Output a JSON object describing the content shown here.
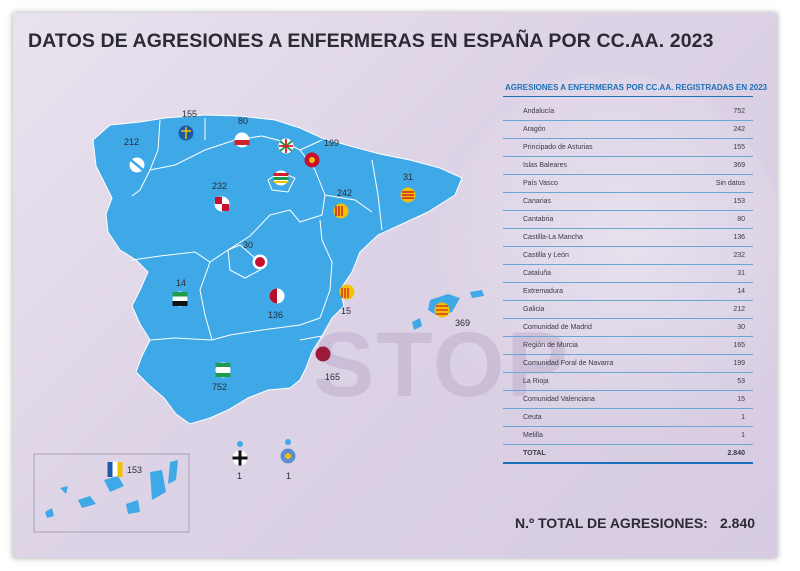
{
  "title": "DATOS DE AGRESIONES A ENFERMERAS EN ESPAÑA POR CC.AA. 2023",
  "colors": {
    "map_fill": "#3fa9e8",
    "map_border": "#ffffff",
    "accent_blue": "#1b70b8",
    "background": "#e4dcea"
  },
  "watermark": "STOP",
  "map_labels": {
    "galicia": "212",
    "asturias": "155",
    "cantabria": "80",
    "pais_vasco": "",
    "navarra": "199",
    "aragon": "242",
    "cataluna": "31",
    "castilla_leon": "232",
    "madrid": "30",
    "extremadura": "14",
    "castilla_la_mancha": "136",
    "valencia": "15",
    "baleares": "369",
    "murcia": "165",
    "andalucia": "752",
    "canarias": "153",
    "ceuta": "1",
    "melilla": "1"
  },
  "table": {
    "title": "AGRESIONES A ENFERMERAS POR CC.AA. REGISTRADAS EN 2023",
    "rows": [
      {
        "name": "Andalucía",
        "value": "752"
      },
      {
        "name": "Aragón",
        "value": "242"
      },
      {
        "name": "Principado de Asturias",
        "value": "155"
      },
      {
        "name": "Islas Baleares",
        "value": "369"
      },
      {
        "name": "País Vasco",
        "value": "Sin datos"
      },
      {
        "name": "Canarias",
        "value": "153"
      },
      {
        "name": "Cantabria",
        "value": "80"
      },
      {
        "name": "Castilla-La Mancha",
        "value": "136"
      },
      {
        "name": "Castilla y León",
        "value": "232"
      },
      {
        "name": "Cataluña",
        "value": "31"
      },
      {
        "name": "Extremadura",
        "value": "14"
      },
      {
        "name": "Galicia",
        "value": "212"
      },
      {
        "name": "Comunidad de Madrid",
        "value": "30"
      },
      {
        "name": "Región de Murcia",
        "value": "165"
      },
      {
        "name": "Comunidad Foral de Navarra",
        "value": "199"
      },
      {
        "name": "La Rioja",
        "value": "53"
      },
      {
        "name": "Comunidad Valenciana",
        "value": "15"
      },
      {
        "name": "Ceuta",
        "value": "1"
      },
      {
        "name": "Melilla",
        "value": "1"
      }
    ],
    "total_label": "TOTAL",
    "total_value": "2.840"
  },
  "footer": {
    "label": "N.º TOTAL DE AGRESIONES:",
    "value": "2.840"
  }
}
